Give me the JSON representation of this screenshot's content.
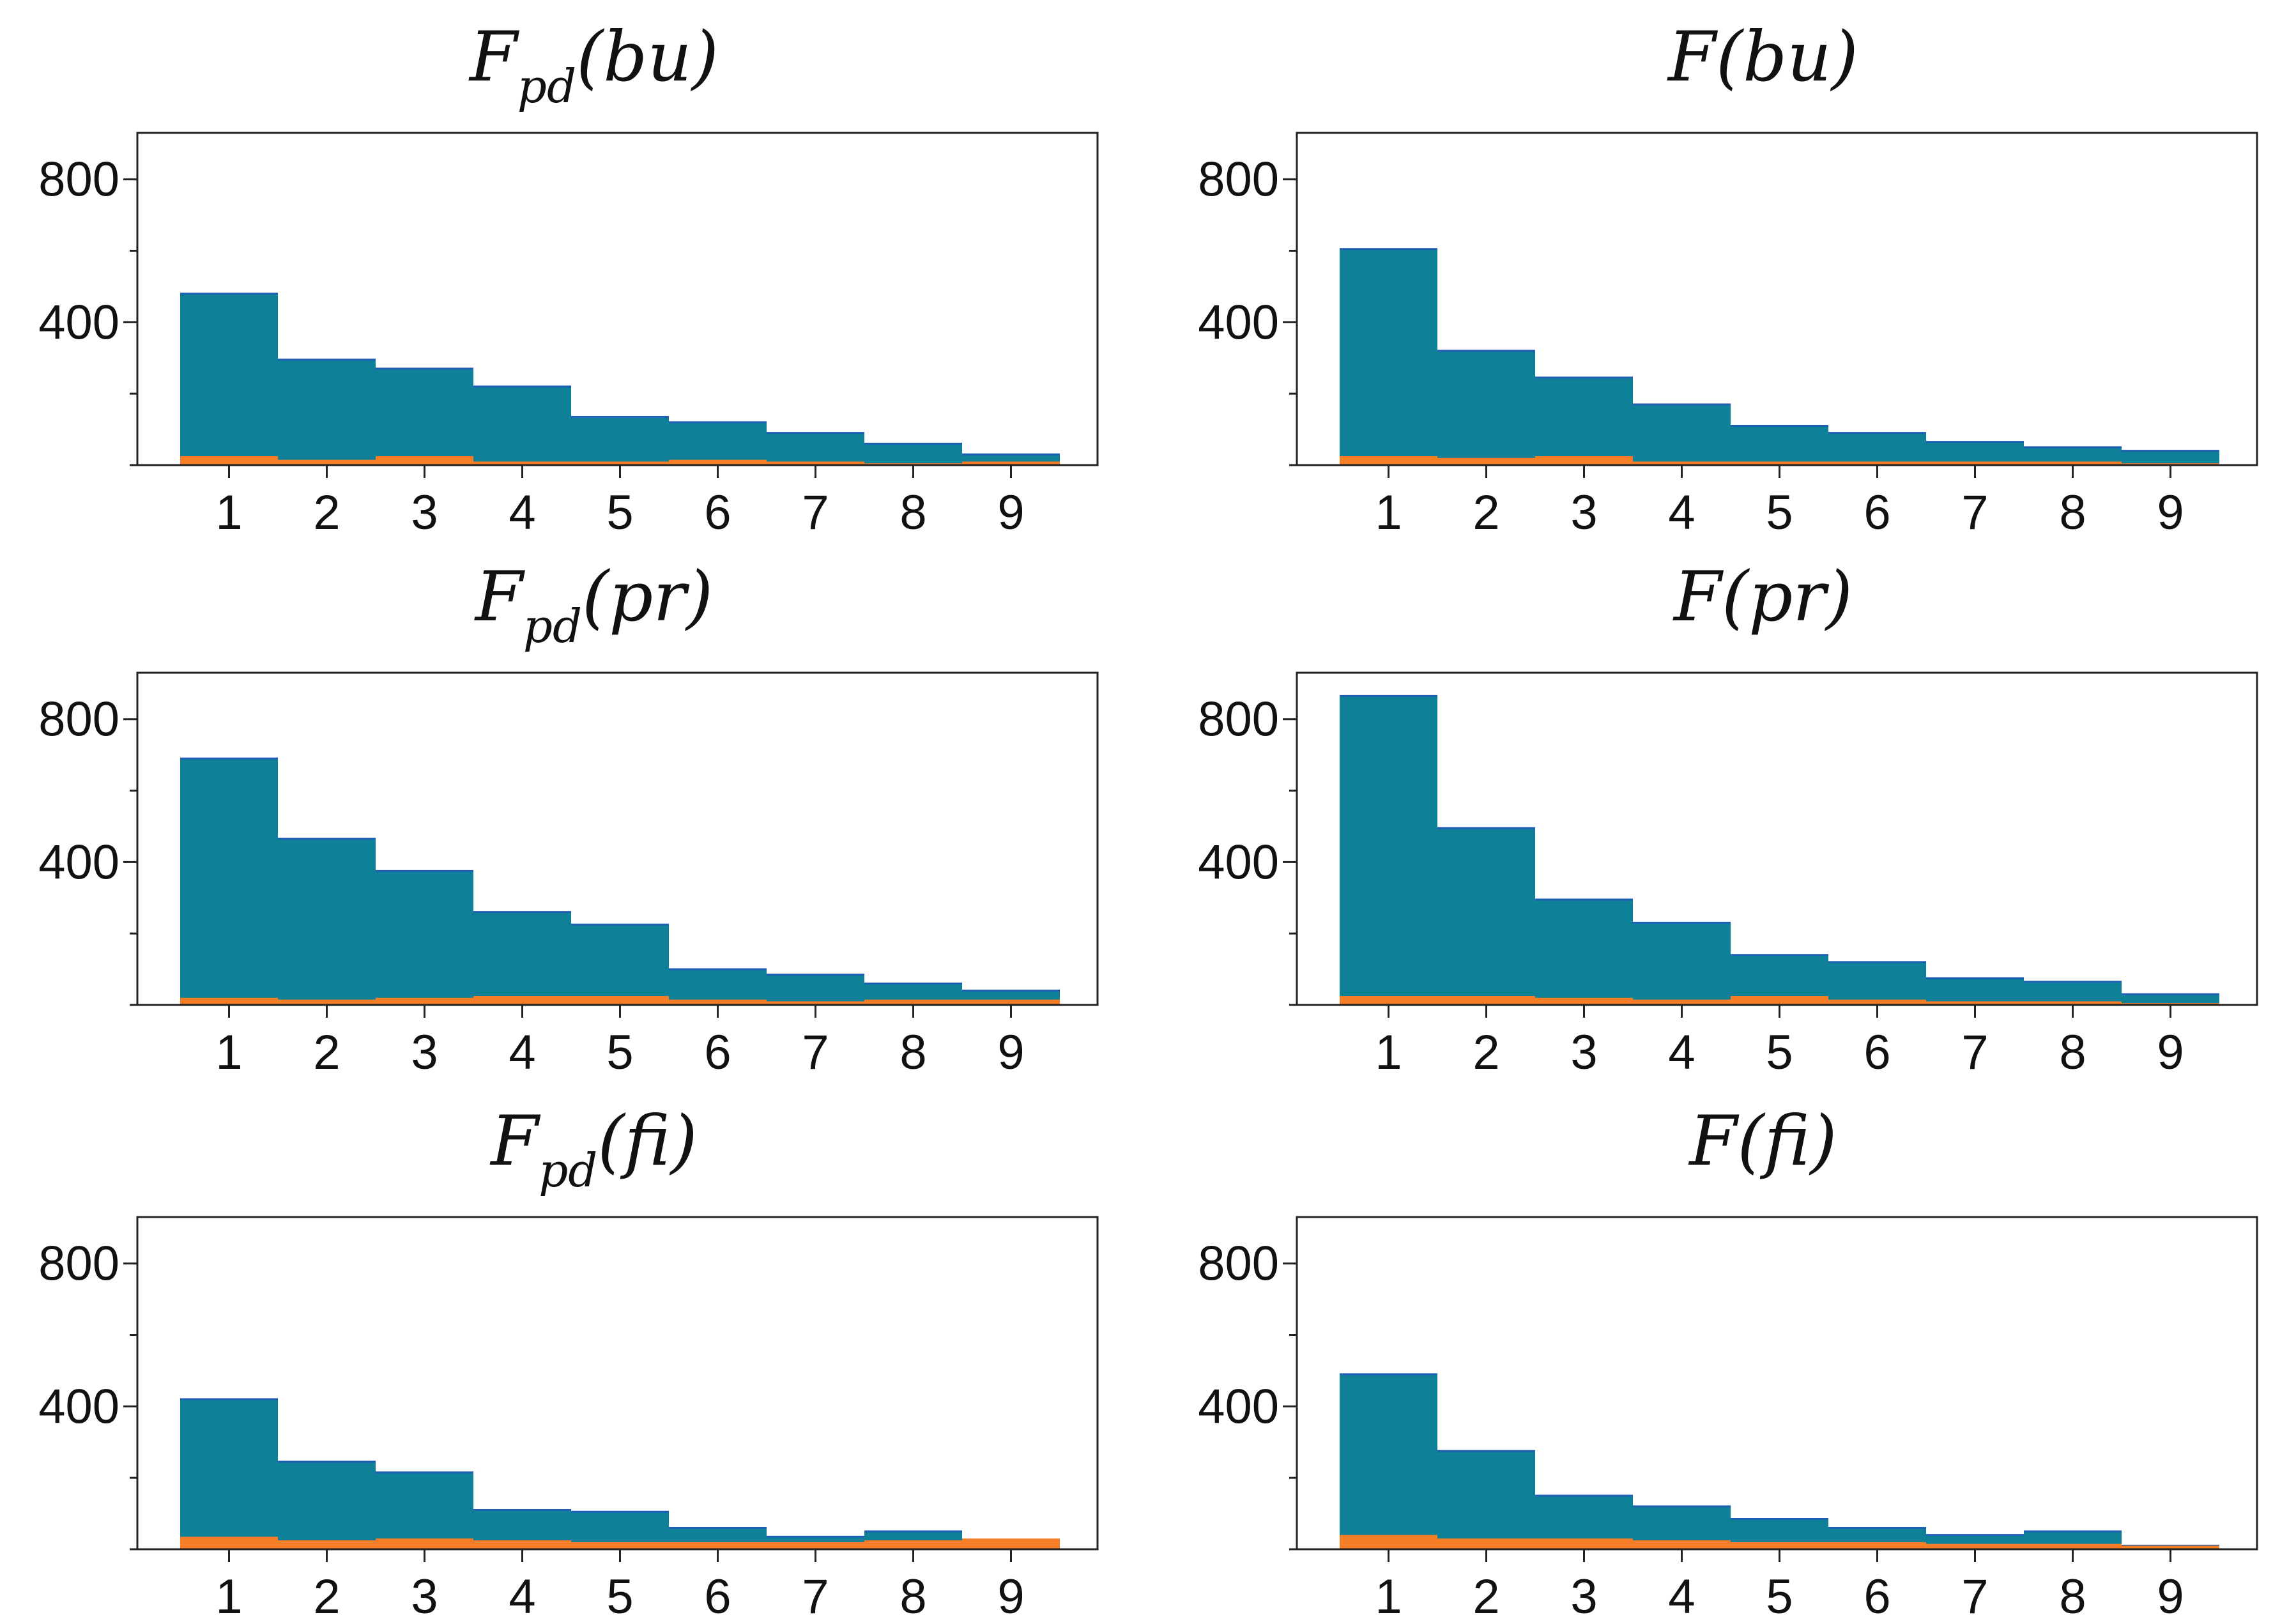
{
  "figure": {
    "colors": {
      "main": "#0e8198",
      "overlay": "#f57d25",
      "axis": "#222222"
    }
  },
  "chart_data": [
    {
      "type": "bar",
      "title": {
        "main": "F",
        "sub": "pd",
        "arg": "(bu)"
      },
      "categories": [
        "1",
        "2",
        "3",
        "4",
        "5",
        "6",
        "7",
        "8",
        "9"
      ],
      "series": [
        {
          "values": [
            480,
            295,
            270,
            220,
            135,
            120,
            90,
            60,
            30
          ]
        },
        {
          "values": [
            25,
            15,
            25,
            10,
            10,
            15,
            10,
            5,
            10
          ]
        }
      ],
      "yticks": [
        400,
        800
      ],
      "ylim": [
        0,
        930
      ],
      "grid": false
    },
    {
      "type": "bar",
      "title": {
        "main": "F",
        "sub": "",
        "arg": "(bu)"
      },
      "categories": [
        "1",
        "2",
        "3",
        "4",
        "5",
        "6",
        "7",
        "8",
        "9"
      ],
      "series": [
        {
          "values": [
            605,
            320,
            245,
            170,
            110,
            90,
            65,
            50,
            40
          ]
        },
        {
          "values": [
            25,
            20,
            25,
            10,
            10,
            10,
            10,
            10,
            5
          ]
        }
      ],
      "yticks": [
        400,
        800
      ],
      "ylim": [
        0,
        930
      ],
      "grid": false
    },
    {
      "type": "bar",
      "title": {
        "main": "F",
        "sub": "pd",
        "arg": "(pr)"
      },
      "categories": [
        "1",
        "2",
        "3",
        "4",
        "5",
        "6",
        "7",
        "8",
        "9"
      ],
      "series": [
        {
          "values": [
            690,
            465,
            375,
            260,
            225,
            100,
            85,
            60,
            40
          ]
        },
        {
          "values": [
            20,
            15,
            20,
            25,
            25,
            15,
            10,
            15,
            15
          ]
        }
      ],
      "yticks": [
        400,
        800
      ],
      "ylim": [
        0,
        930
      ],
      "grid": false
    },
    {
      "type": "bar",
      "title": {
        "main": "F",
        "sub": "",
        "arg": "(pr)"
      },
      "categories": [
        "1",
        "2",
        "3",
        "4",
        "5",
        "6",
        "7",
        "8",
        "9"
      ],
      "series": [
        {
          "values": [
            865,
            495,
            295,
            230,
            140,
            120,
            75,
            65,
            30
          ]
        },
        {
          "values": [
            25,
            25,
            20,
            15,
            25,
            15,
            10,
            10,
            5
          ]
        }
      ],
      "yticks": [
        400,
        800
      ],
      "ylim": [
        0,
        930
      ],
      "grid": false
    },
    {
      "type": "bar",
      "title": {
        "main": "F",
        "sub": "pd",
        "arg": "(fi)"
      },
      "categories": [
        "1",
        "2",
        "3",
        "4",
        "5",
        "6",
        "7",
        "8",
        "9"
      ],
      "series": [
        {
          "values": [
            420,
            245,
            215,
            110,
            105,
            60,
            35,
            50,
            25
          ]
        },
        {
          "values": [
            35,
            25,
            30,
            25,
            20,
            20,
            20,
            25,
            30
          ]
        }
      ],
      "yticks": [
        400,
        800
      ],
      "ylim": [
        0,
        930
      ],
      "grid": false
    },
    {
      "type": "bar",
      "title": {
        "main": "F",
        "sub": "",
        "arg": "(fi)"
      },
      "categories": [
        "1",
        "2",
        "3",
        "4",
        "5",
        "6",
        "7",
        "8",
        "9"
      ],
      "series": [
        {
          "values": [
            490,
            275,
            150,
            120,
            85,
            60,
            40,
            50,
            10
          ]
        },
        {
          "values": [
            40,
            30,
            30,
            25,
            20,
            20,
            15,
            15,
            10
          ]
        }
      ],
      "yticks": [
        400,
        800
      ],
      "ylim": [
        0,
        930
      ],
      "grid": false
    }
  ]
}
